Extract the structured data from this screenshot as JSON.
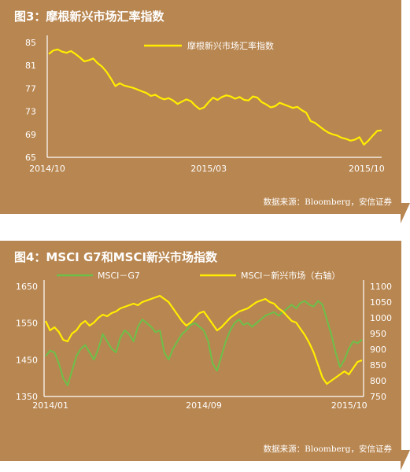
{
  "chart_data": [
    {
      "type": "line",
      "title": "图3：摩根新兴市场汇率指数",
      "source": "数据来源：Bloomberg，安信证券",
      "ylim": [
        65,
        85
      ],
      "yticks": [
        "85",
        "81",
        "77",
        "73",
        "69",
        "65"
      ],
      "xticks": [
        "2014/10",
        "2015/03",
        "2015/10"
      ],
      "grid": false,
      "legend_position": "top-center",
      "series": [
        {
          "name": "摩根新兴市场汇率指数",
          "color": "#ffee00",
          "values": [
            83.0,
            83.6,
            83.8,
            83.4,
            83.2,
            83.5,
            83.0,
            82.4,
            81.7,
            81.9,
            82.2,
            81.4,
            80.8,
            79.9,
            78.7,
            77.4,
            77.9,
            77.5,
            77.3,
            77.1,
            76.8,
            76.5,
            76.2,
            75.7,
            75.9,
            75.4,
            75.1,
            75.3,
            74.9,
            74.3,
            74.7,
            75.1,
            74.8,
            74.0,
            73.4,
            73.7,
            74.6,
            75.4,
            75.0,
            75.5,
            75.8,
            75.6,
            75.2,
            75.5,
            75.0,
            74.9,
            75.6,
            75.4,
            74.6,
            74.2,
            73.7,
            73.9,
            74.5,
            74.2,
            73.9,
            73.6,
            73.8,
            73.2,
            72.8,
            71.3,
            71.0,
            70.4,
            69.8,
            69.3,
            69.0,
            68.8,
            68.4,
            68.2,
            67.9,
            68.1,
            68.5,
            67.2,
            67.9,
            68.8,
            69.6,
            69.7
          ]
        }
      ]
    },
    {
      "type": "line",
      "title": "图4：MSCI G7和MSCI新兴市场指数",
      "source": "数据来源：Bloomberg，安信证券",
      "ylim_left": [
        1350,
        1650
      ],
      "ylim_right": [
        750,
        1100
      ],
      "yticks_left": [
        "1650",
        "1550",
        "1450",
        "1350"
      ],
      "yticks_right": [
        "1100",
        "1050",
        "1000",
        "950",
        "900",
        "850",
        "800",
        "750"
      ],
      "xticks": [
        "2014/01",
        "2014/09",
        "2015/10"
      ],
      "grid": false,
      "legend_position": "top",
      "series": [
        {
          "name": "MSCI－G7",
          "axis": "left",
          "color": "#6cc04a",
          "values": [
            1460,
            1475,
            1470,
            1440,
            1400,
            1380,
            1420,
            1460,
            1480,
            1490,
            1470,
            1450,
            1480,
            1520,
            1500,
            1480,
            1470,
            1510,
            1530,
            1520,
            1500,
            1540,
            1560,
            1550,
            1540,
            1525,
            1530,
            1470,
            1450,
            1480,
            1500,
            1520,
            1530,
            1545,
            1550,
            1540,
            1530,
            1500,
            1440,
            1420,
            1460,
            1500,
            1530,
            1550,
            1560,
            1545,
            1550,
            1540,
            1550,
            1560,
            1570,
            1575,
            1580,
            1570,
            1580,
            1590,
            1600,
            1590,
            1605,
            1610,
            1600,
            1595,
            1610,
            1600,
            1560,
            1520,
            1470,
            1430,
            1450,
            1480,
            1500,
            1495,
            1505
          ]
        },
        {
          "name": "MSCI－新兴市场（右轴）",
          "axis": "right",
          "color": "#ffee00",
          "values": [
            990,
            960,
            970,
            955,
            930,
            925,
            950,
            960,
            980,
            990,
            975,
            985,
            1000,
            1010,
            1005,
            1015,
            1020,
            1030,
            1035,
            1040,
            1045,
            1040,
            1050,
            1055,
            1060,
            1065,
            1070,
            1060,
            1050,
            1030,
            1010,
            990,
            975,
            985,
            1000,
            1015,
            1020,
            1000,
            980,
            960,
            970,
            985,
            1000,
            1010,
            1020,
            1025,
            1030,
            1040,
            1050,
            1055,
            1060,
            1050,
            1045,
            1030,
            1020,
            1005,
            990,
            985,
            965,
            945,
            920,
            890,
            850,
            810,
            790,
            800,
            810,
            820,
            830,
            820,
            840,
            860,
            865
          ]
        }
      ]
    }
  ]
}
